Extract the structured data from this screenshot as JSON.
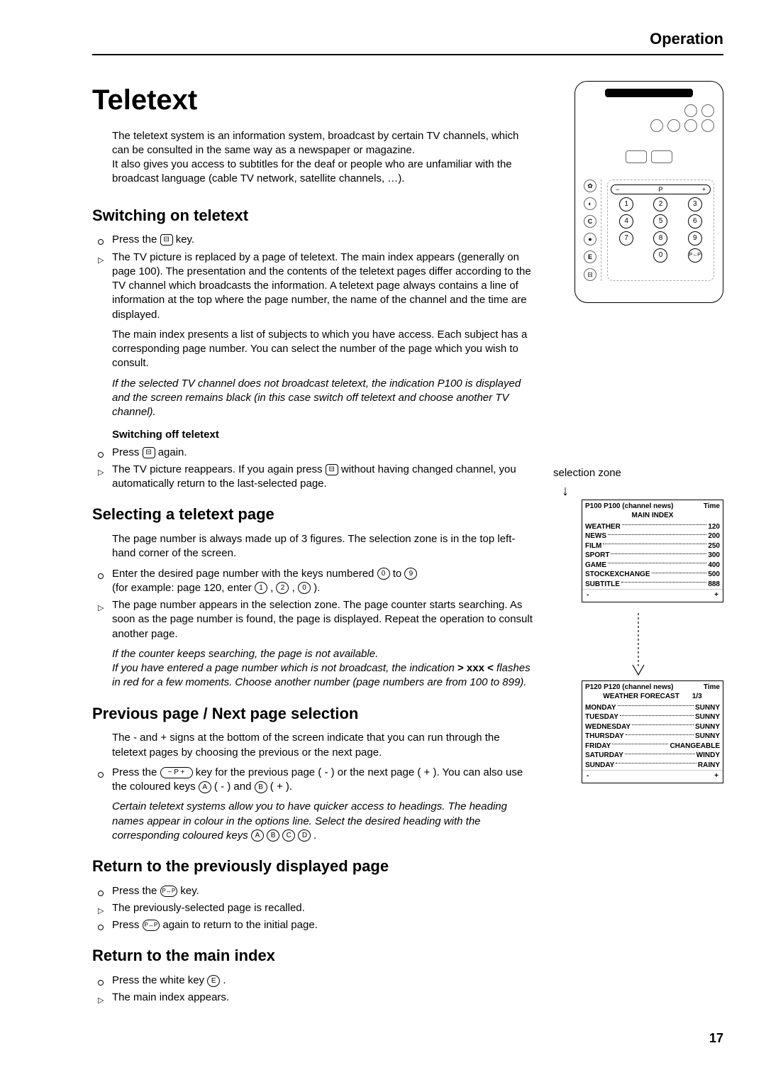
{
  "header": {
    "section": "Operation"
  },
  "page_number": "17",
  "title": "Teletext",
  "intro": [
    "The teletext system is an information system, broadcast by certain TV channels, which can be consulted in the same way as a newspaper or magazine.",
    "It also gives you access to subtitles for the deaf or people who are unfamiliar with the broadcast language (cable TV network, satellite channels, …)."
  ],
  "sections": {
    "switch_on": {
      "heading": "Switching on teletext",
      "item1": "Press the ",
      "item1b": " key.",
      "item2": "The TV picture is replaced by a page of teletext. The main index appears (generally on page 100). The presentation and the contents of the teletext pages differ according to the TV channel which broadcasts the information. A teletext page always contains a line of information at the top where the page number, the name of the channel and the time are displayed.",
      "para1": "The main index presents a list of subjects to which you have access. Each subject has a corresponding page number. You can select the number of the page which you wish to consult.",
      "note1": "If the selected TV channel does not broadcast teletext, the indication P100 is displayed and the screen remains black (in this case switch off teletext and choose another TV channel).",
      "sub_heading": "Switching off teletext",
      "off1a": "Press ",
      "off1b": " again.",
      "off2a": "The TV picture reappears. If you again press ",
      "off2b": " without having changed channel, you automatically return to the last-selected page."
    },
    "selecting": {
      "heading": "Selecting a teletext page",
      "intro": "The page number is always made up of 3 figures. The selection zone is in the top left-hand corner of the screen.",
      "item1a": "Enter the desired page number with the keys numbered ",
      "item1b": " to ",
      "item1c": " (for example: page 120, enter ",
      "item1d": ", ",
      "item1e": ", ",
      "item1f": ").",
      "item2": "The page number appears in the selection zone. The page counter starts searching. As soon as the page number is found, the page is displayed. Repeat the operation to consult another page.",
      "note1": "If the counter keeps searching, the page is not available.",
      "note2a": "If you have entered a page number which is not broadcast, the indication ",
      "note2mid": "> xxx <",
      "note2b": " flashes in red for a few moments. Choose another number (page numbers are from 100 to 899)."
    },
    "prevnext": {
      "heading": "Previous page / Next page selection",
      "intro": "The - and + signs at the bottom of the screen indicate that you can run through the teletext pages by choosing the previous or the next page.",
      "item1a": "Press the ",
      "item1b": " key for the previous page ( - ) or the next page ( + ). You can also use the coloured keys ",
      "item1c": " ( - ) and ",
      "item1d": " ( + ).",
      "note1": "Certain teletext systems allow you to have quicker access to headings. The heading names appear in colour in the options line. Select the desired heading with the corresponding coloured keys ",
      "note1b": "."
    },
    "return_prev": {
      "heading": "Return to the previously displayed page",
      "item1a": "Press the ",
      "item1b": " key.",
      "item2": "The previously-selected page is recalled.",
      "item3a": "Press ",
      "item3b": " again to return to the initial page."
    },
    "return_index": {
      "heading": "Return to the main index",
      "item1a": "Press the white key ",
      "item1b": ".",
      "item2": "The main index appears."
    }
  },
  "keys": {
    "teletext": "⊟",
    "zero": "0",
    "nine": "9",
    "one": "1",
    "two": "2",
    "zero2": "0",
    "p_wide_minus": "−",
    "p_wide_label": "P",
    "p_wide_plus": "+",
    "A": "A",
    "B": "B",
    "C": "C",
    "D": "D",
    "E": "E",
    "swap": "P↔P"
  },
  "side": {
    "selection_label": "selection zone",
    "box1": {
      "header_left": "P100  P100 (channel news)",
      "header_right": "Time",
      "title": "MAIN INDEX",
      "rows": [
        {
          "label": "WEATHER",
          "val": "120"
        },
        {
          "label": "NEWS",
          "val": "200"
        },
        {
          "label": "FILM",
          "val": "250"
        },
        {
          "label": "SPORT",
          "val": "300"
        },
        {
          "label": "GAME",
          "val": "400"
        },
        {
          "label": "STOCKEXCHANGE",
          "val": "500"
        },
        {
          "label": "SUBTITLE",
          "val": "888"
        }
      ],
      "footer_left": "-",
      "footer_right": "+"
    },
    "box2": {
      "header_left": "P120  P120 (channel news)",
      "header_right": "Time",
      "title": "WEATHER FORECAST",
      "title_right": "1/3",
      "rows": [
        {
          "label": "MONDAY",
          "val": "SUNNY"
        },
        {
          "label": "TUESDAY",
          "val": "SUNNY"
        },
        {
          "label": "WEDNESDAY",
          "val": "SUNNY"
        },
        {
          "label": "THURSDAY",
          "val": "SUNNY"
        },
        {
          "label": "FRIDAY",
          "val": "CHANGEABLE"
        },
        {
          "label": "SATURDAY",
          "val": "WINDY"
        },
        {
          "label": "SUNDAY",
          "val": "RAINY"
        }
      ],
      "footer_left": "-",
      "footer_right": "+"
    }
  },
  "remote": {
    "keypad": [
      "1",
      "2",
      "3",
      "4",
      "5",
      "6",
      "7",
      "8",
      "9",
      "",
      "0",
      ""
    ]
  }
}
